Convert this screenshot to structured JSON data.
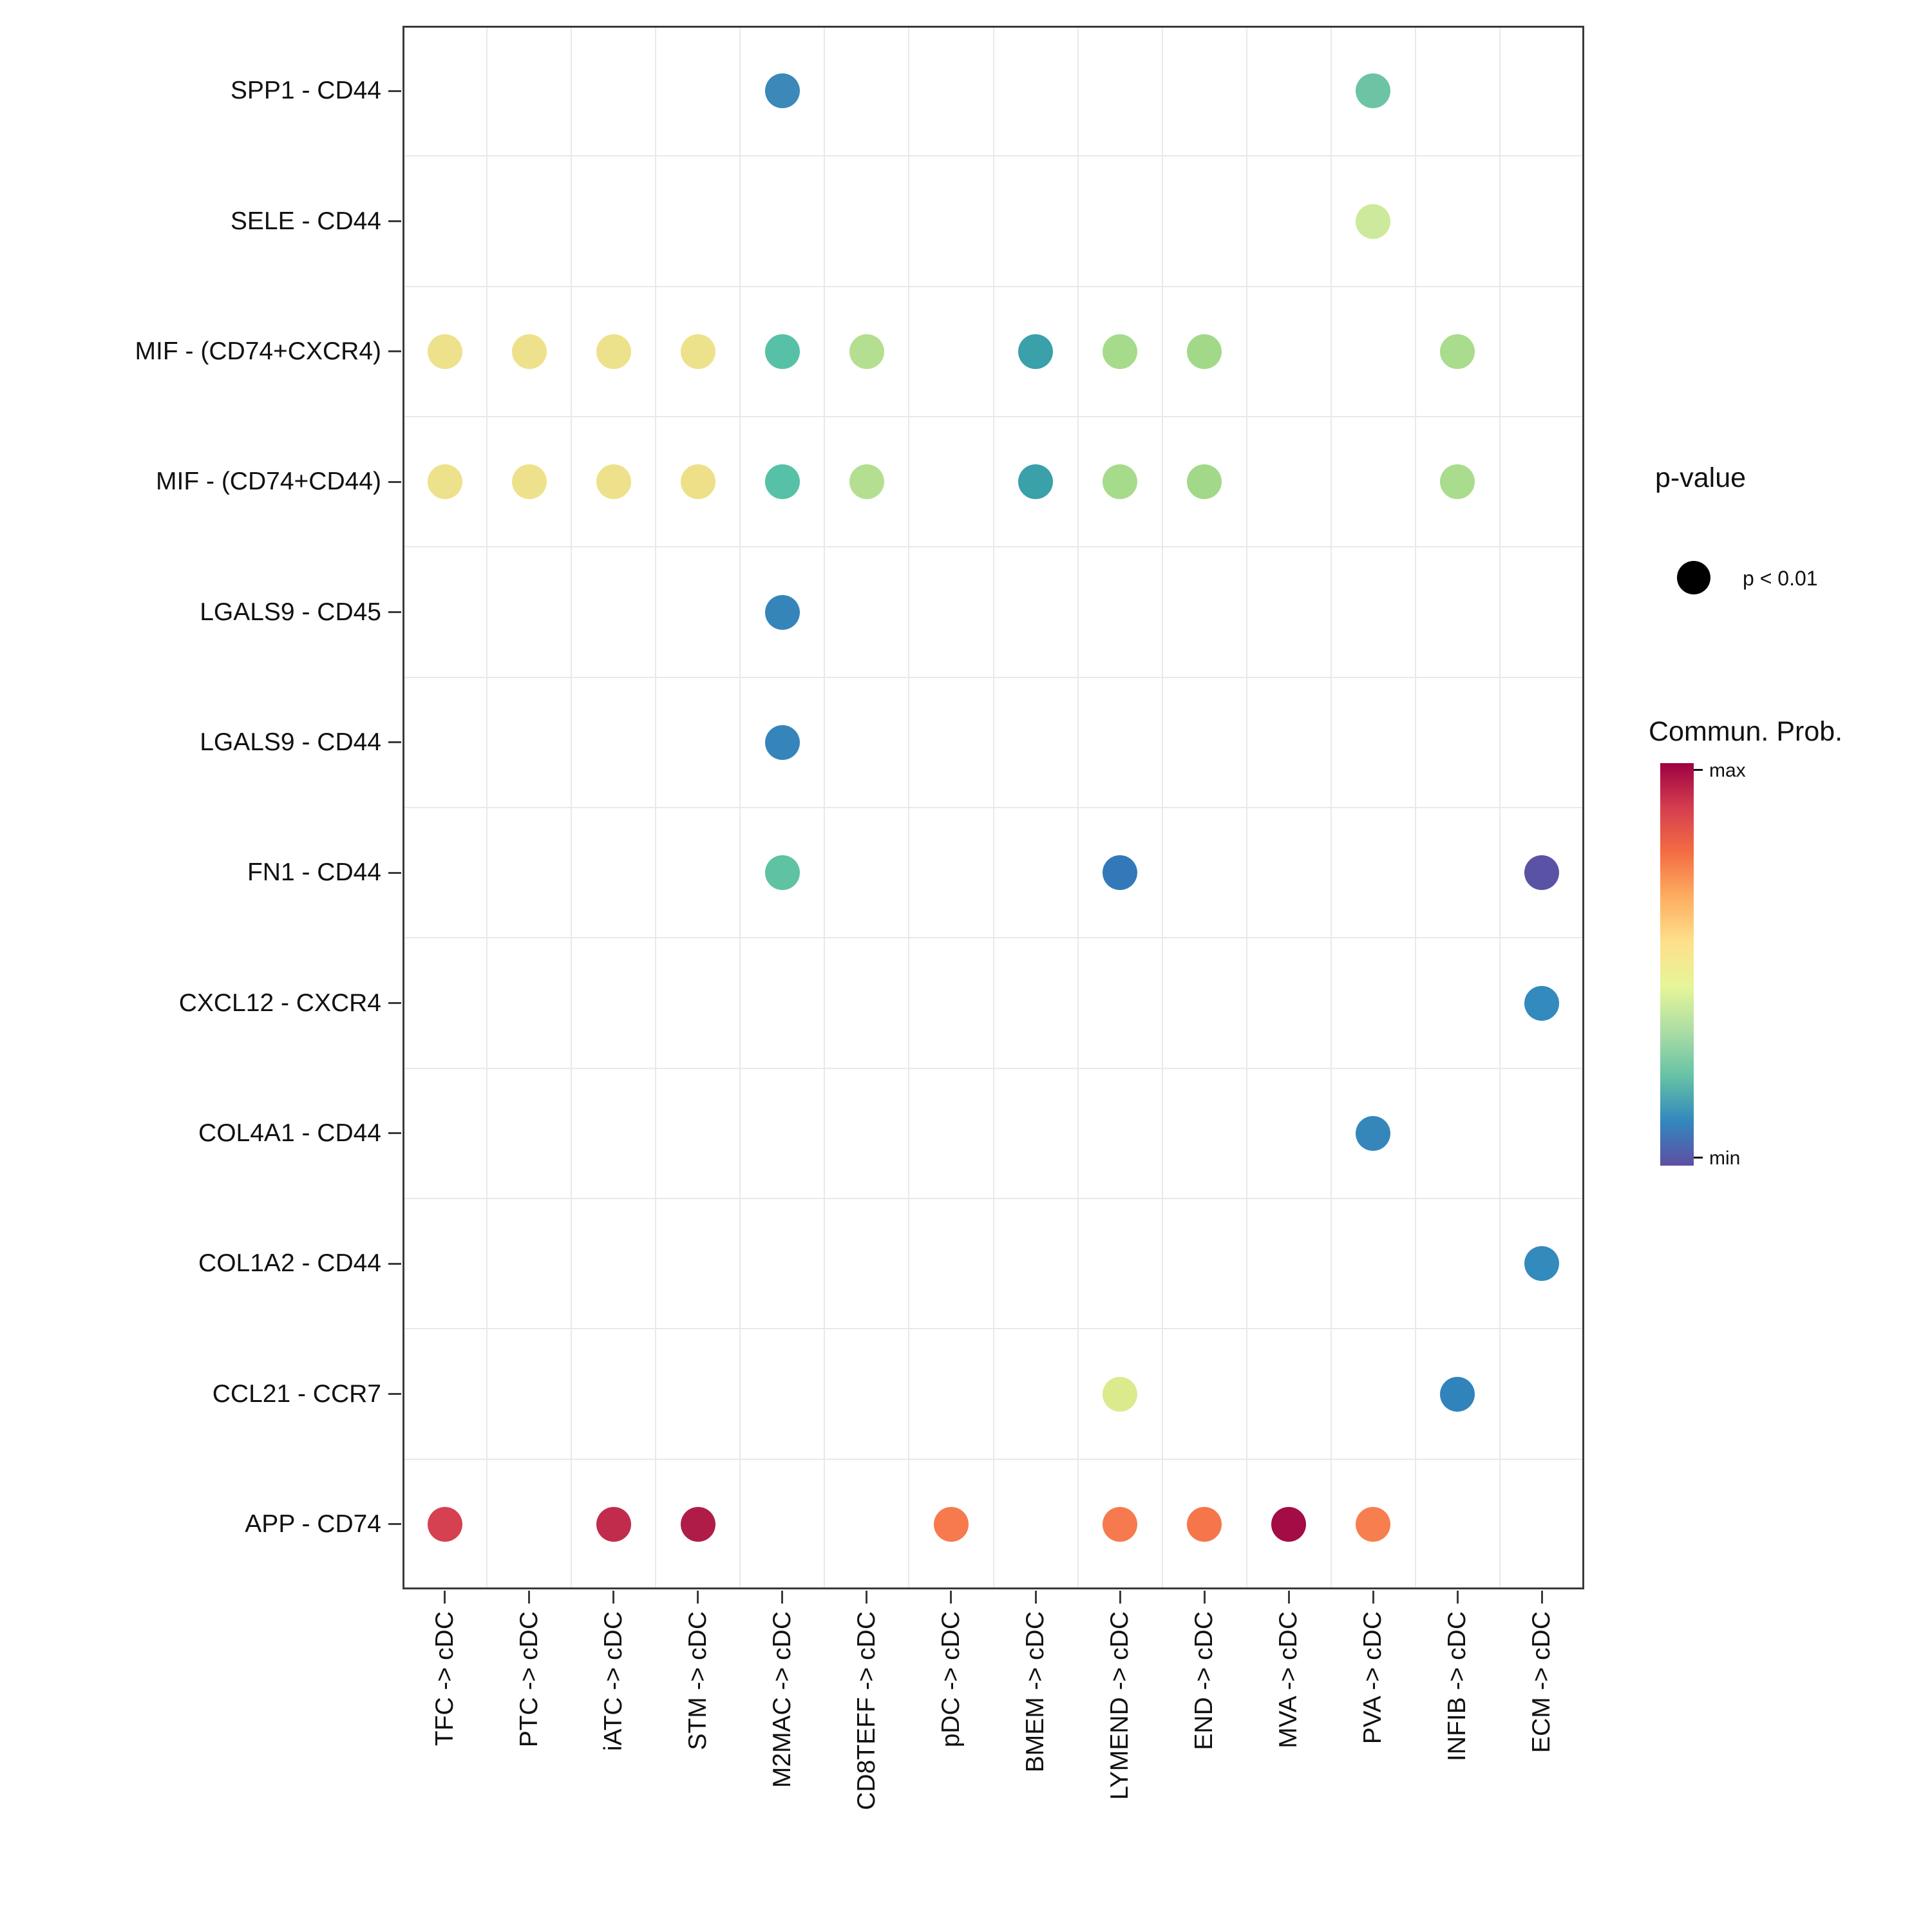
{
  "chart_data": {
    "type": "scatter",
    "subtype": "dot-plot",
    "title": "",
    "xlabel": "",
    "ylabel": "",
    "rows": [
      "SPP1 - CD44",
      "SELE - CD44",
      "MIF - (CD74+CXCR4)",
      "MIF - (CD74+CD44)",
      "LGALS9 - CD45",
      "LGALS9 - CD44",
      "FN1 - CD44",
      "CXCL12 - CXCR4",
      "COL4A1 - CD44",
      "COL1A2 - CD44",
      "CCL21 - CCR7",
      "APP - CD74"
    ],
    "columns": [
      "TFC -> cDC",
      "PTC -> cDC",
      "iATC -> cDC",
      "STM -> cDC",
      "M2MAC -> cDC",
      "CD8TEFF -> cDC",
      "pDC -> cDC",
      "BMEM -> cDC",
      "LYMEND -> cDC",
      "END -> cDC",
      "MVA -> cDC",
      "PVA -> cDC",
      "INFIB -> cDC",
      "ECM -> cDC"
    ],
    "points": [
      {
        "row": "SPP1 - CD44",
        "col": "M2MAC -> cDC",
        "color": "#3b88b9",
        "pvalue": "p < 0.01"
      },
      {
        "row": "SPP1 - CD44",
        "col": "PVA -> cDC",
        "color": "#6cc4a4",
        "pvalue": "p < 0.01"
      },
      {
        "row": "SELE - CD44",
        "col": "PVA -> cDC",
        "color": "#cde99b",
        "pvalue": "p < 0.01"
      },
      {
        "row": "MIF - (CD74+CXCR4)",
        "col": "TFC -> cDC",
        "color": "#eee18b",
        "pvalue": "p < 0.01"
      },
      {
        "row": "MIF - (CD74+CXCR4)",
        "col": "PTC -> cDC",
        "color": "#eee18b",
        "pvalue": "p < 0.01"
      },
      {
        "row": "MIF - (CD74+CXCR4)",
        "col": "iATC -> cDC",
        "color": "#eee18b",
        "pvalue": "p < 0.01"
      },
      {
        "row": "MIF - (CD74+CXCR4)",
        "col": "STM -> cDC",
        "color": "#eee18b",
        "pvalue": "p < 0.01"
      },
      {
        "row": "MIF - (CD74+CXCR4)",
        "col": "M2MAC -> cDC",
        "color": "#56c1a6",
        "pvalue": "p < 0.01"
      },
      {
        "row": "MIF - (CD74+CXCR4)",
        "col": "CD8TEFF -> cDC",
        "color": "#b4df90",
        "pvalue": "p < 0.01"
      },
      {
        "row": "MIF - (CD74+CXCR4)",
        "col": "BMEM -> cDC",
        "color": "#3aa0a9",
        "pvalue": "p < 0.01"
      },
      {
        "row": "MIF - (CD74+CXCR4)",
        "col": "LYMEND -> cDC",
        "color": "#a6db8c",
        "pvalue": "p < 0.01"
      },
      {
        "row": "MIF - (CD74+CXCR4)",
        "col": "END -> cDC",
        "color": "#a2d989",
        "pvalue": "p < 0.01"
      },
      {
        "row": "MIF - (CD74+CXCR4)",
        "col": "INFIB -> cDC",
        "color": "#a9dc8d",
        "pvalue": "p < 0.01"
      },
      {
        "row": "MIF - (CD74+CD44)",
        "col": "TFC -> cDC",
        "color": "#eee18b",
        "pvalue": "p < 0.01"
      },
      {
        "row": "MIF - (CD74+CD44)",
        "col": "PTC -> cDC",
        "color": "#eee18b",
        "pvalue": "p < 0.01"
      },
      {
        "row": "MIF - (CD74+CD44)",
        "col": "iATC -> cDC",
        "color": "#eee18b",
        "pvalue": "p < 0.01"
      },
      {
        "row": "MIF - (CD74+CD44)",
        "col": "STM -> cDC",
        "color": "#ede089",
        "pvalue": "p < 0.01"
      },
      {
        "row": "MIF - (CD74+CD44)",
        "col": "M2MAC -> cDC",
        "color": "#56c1a6",
        "pvalue": "p < 0.01"
      },
      {
        "row": "MIF - (CD74+CD44)",
        "col": "CD8TEFF -> cDC",
        "color": "#b4df90",
        "pvalue": "p < 0.01"
      },
      {
        "row": "MIF - (CD74+CD44)",
        "col": "BMEM -> cDC",
        "color": "#3aa0a9",
        "pvalue": "p < 0.01"
      },
      {
        "row": "MIF - (CD74+CD44)",
        "col": "LYMEND -> cDC",
        "color": "#a6db8c",
        "pvalue": "p < 0.01"
      },
      {
        "row": "MIF - (CD74+CD44)",
        "col": "END -> cDC",
        "color": "#a2d989",
        "pvalue": "p < 0.01"
      },
      {
        "row": "MIF - (CD74+CD44)",
        "col": "INFIB -> cDC",
        "color": "#a9dc8d",
        "pvalue": "p < 0.01"
      },
      {
        "row": "LGALS9 - CD45",
        "col": "M2MAC -> cDC",
        "color": "#3585bb",
        "pvalue": "p < 0.01"
      },
      {
        "row": "LGALS9 - CD44",
        "col": "M2MAC -> cDC",
        "color": "#3585bb",
        "pvalue": "p < 0.01"
      },
      {
        "row": "FN1 - CD44",
        "col": "M2MAC -> cDC",
        "color": "#5ec2a3",
        "pvalue": "p < 0.01"
      },
      {
        "row": "FN1 - CD44",
        "col": "LYMEND -> cDC",
        "color": "#3379b9",
        "pvalue": "p < 0.01"
      },
      {
        "row": "FN1 - CD44",
        "col": "ECM -> cDC",
        "color": "#5a52a4",
        "pvalue": "p < 0.01"
      },
      {
        "row": "CXCL12 - CXCR4",
        "col": "ECM -> cDC",
        "color": "#338abc",
        "pvalue": "p < 0.01"
      },
      {
        "row": "COL4A1 - CD44",
        "col": "PVA -> cDC",
        "color": "#3587bb",
        "pvalue": "p < 0.01"
      },
      {
        "row": "COL1A2 - CD44",
        "col": "ECM -> cDC",
        "color": "#338abc",
        "pvalue": "p < 0.01"
      },
      {
        "row": "CCL21 - CCR7",
        "col": "LYMEND -> cDC",
        "color": "#dcea8e",
        "pvalue": "p < 0.01"
      },
      {
        "row": "CCL21 - CCR7",
        "col": "INFIB -> cDC",
        "color": "#3184bb",
        "pvalue": "p < 0.01"
      },
      {
        "row": "APP - CD74",
        "col": "TFC -> cDC",
        "color": "#d54150",
        "pvalue": "p < 0.01"
      },
      {
        "row": "APP - CD74",
        "col": "iATC -> cDC",
        "color": "#c22c4c",
        "pvalue": "p < 0.01"
      },
      {
        "row": "APP - CD74",
        "col": "STM -> cDC",
        "color": "#b01c48",
        "pvalue": "p < 0.01"
      },
      {
        "row": "APP - CD74",
        "col": "pDC -> cDC",
        "color": "#f67a4d",
        "pvalue": "p < 0.01"
      },
      {
        "row": "APP - CD74",
        "col": "LYMEND -> cDC",
        "color": "#f67a4d",
        "pvalue": "p < 0.01"
      },
      {
        "row": "APP - CD74",
        "col": "END -> cDC",
        "color": "#f5764b",
        "pvalue": "p < 0.01"
      },
      {
        "row": "APP - CD74",
        "col": "MVA -> cDC",
        "color": "#a30c45",
        "pvalue": "p < 0.01"
      },
      {
        "row": "APP - CD74",
        "col": "PVA -> cDC",
        "color": "#f77e4e",
        "pvalue": "p < 0.01"
      }
    ],
    "pvalue_legend": {
      "title": "p-value",
      "entries": [
        {
          "label": "p < 0.01",
          "dot_color": "#000000"
        }
      ]
    },
    "colorbar": {
      "title": "Commun. Prob.",
      "max_label": "max",
      "min_label": "min",
      "colors_top_to_bottom": [
        "#9e0142",
        "#d53e4f",
        "#f46d43",
        "#fdae61",
        "#fee08b",
        "#e6f598",
        "#abdda4",
        "#66c2a5",
        "#3288bd",
        "#5e4fa2"
      ]
    },
    "layout_hints": {
      "grid": "light-gray-minor",
      "panel_border": "#3a3a3a",
      "legend_position": "right",
      "x_tick_rotation_deg": 90
    }
  }
}
